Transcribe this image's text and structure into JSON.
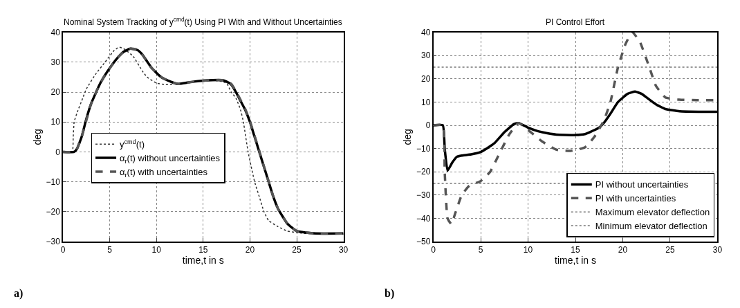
{
  "chart_data": [
    {
      "type": "line",
      "title": "Nominal System Tracking of y$^{cmd}$(t) Using PI With and Without Uncertainties",
      "xlabel": "time,t in s",
      "ylabel": "deg",
      "xlim": [
        0,
        30
      ],
      "ylim": [
        -30,
        40
      ],
      "xticks": [
        0,
        5,
        10,
        15,
        20,
        25,
        30
      ],
      "yticks": [
        -30,
        -20,
        -10,
        0,
        10,
        20,
        30,
        40
      ],
      "grid": true,
      "legend": "left",
      "annotations": [
        "a)"
      ],
      "series": [
        {
          "name": "y$^{cmd}$(t)",
          "color": "#333333",
          "line_style": "dotted",
          "x": [
            0,
            1,
            1.1,
            1.2,
            1.5,
            2,
            2.5,
            3.5,
            4.5,
            5.5,
            6,
            6.5,
            7.5,
            8.5,
            9,
            10,
            11,
            12,
            13,
            14,
            16,
            17,
            17.5,
            18,
            18.5,
            19,
            19.3,
            19.8,
            20.5,
            21,
            21.5,
            22,
            23,
            24,
            25,
            26,
            28,
            30
          ],
          "values": [
            0,
            0,
            5,
            10,
            13,
            17,
            21,
            26,
            30,
            34,
            35,
            34.5,
            32,
            27,
            25,
            23,
            22.5,
            22.7,
            23,
            23.5,
            24,
            23.5,
            23,
            20,
            18,
            14,
            10,
            0,
            -10,
            -15,
            -20,
            -23,
            -25,
            -26.5,
            -27,
            -27.3,
            -27.5,
            -27.5
          ]
        },
        {
          "name": "α$_{r}$(t) without uncertainties",
          "color": "#000000",
          "line_style": "solid",
          "x": [
            0,
            1.2,
            1.5,
            2,
            2.5,
            3,
            4,
            5,
            6,
            6.5,
            7.2,
            8,
            8.5,
            9.5,
            10.5,
            11.5,
            12.3,
            13,
            14,
            15,
            16,
            17,
            17.5,
            18,
            18.5,
            19,
            19.5,
            20,
            20.5,
            21,
            21.5,
            22,
            22.5,
            23,
            24,
            25,
            26,
            27,
            30
          ],
          "values": [
            0,
            0,
            1,
            5,
            11,
            16,
            23,
            28,
            32,
            33.5,
            34.5,
            34,
            32.5,
            28,
            25,
            23.5,
            22.7,
            23,
            23.5,
            23.8,
            24,
            24,
            23.5,
            22.5,
            20,
            17,
            14,
            10,
            5,
            0,
            -5,
            -10,
            -15,
            -19,
            -24,
            -26.5,
            -27,
            -27.3,
            -27.3
          ]
        },
        {
          "name": "α$_{r}$(t) with uncertainties",
          "color": "#555555",
          "line_style": "dashed",
          "x": [
            0,
            1.2,
            1.5,
            2,
            2.5,
            3,
            4,
            5,
            6,
            6.5,
            7.2,
            8,
            8.5,
            9.5,
            10.5,
            11.5,
            12.3,
            13,
            14,
            15,
            16,
            17,
            17.5,
            18,
            18.5,
            19,
            19.5,
            20,
            20.5,
            21,
            21.5,
            22,
            22.5,
            23,
            24,
            25,
            26,
            27,
            30
          ],
          "values": [
            0,
            0,
            1,
            5,
            10.5,
            16,
            23,
            28,
            32,
            33.5,
            34.5,
            34.2,
            32.5,
            28,
            25,
            23.5,
            22.7,
            23,
            23.5,
            23.8,
            24,
            24,
            23.7,
            22.7,
            20.3,
            17.3,
            14.3,
            10.3,
            5.3,
            0.3,
            -5,
            -10,
            -15,
            -19,
            -24,
            -26.5,
            -27,
            -27.3,
            -27.3
          ]
        }
      ]
    },
    {
      "type": "line",
      "title": "PI Control Effort",
      "xlabel": "time,t in s",
      "ylabel": "deg",
      "xlim": [
        0,
        30
      ],
      "ylim": [
        -50,
        40
      ],
      "xticks": [
        0,
        5,
        10,
        15,
        20,
        25,
        30
      ],
      "yticks": [
        -50,
        -40,
        -30,
        -20,
        -10,
        0,
        10,
        20,
        30,
        40
      ],
      "grid": true,
      "legend": "bottom right",
      "annotations": [
        "b)"
      ],
      "series": [
        {
          "name": "PI without uncertainties",
          "color": "#000000",
          "line_style": "solid",
          "x": [
            0,
            1,
            1.2,
            1.5,
            2,
            2.5,
            3,
            4,
            5,
            6,
            6.5,
            7.5,
            8.5,
            9,
            10,
            11,
            11.5,
            13,
            15,
            16,
            16.5,
            17.5,
            18,
            18.7,
            19.5,
            20.5,
            21.3,
            22,
            22.5,
            23.5,
            24.5,
            26,
            28,
            30
          ],
          "values": [
            0,
            0,
            -10,
            -19.5,
            -16,
            -13.5,
            -13,
            -12.5,
            -11.5,
            -9,
            -7.5,
            -3,
            0.5,
            1,
            -1,
            -2.5,
            -3,
            -4,
            -4.2,
            -3.8,
            -3,
            -1,
            1,
            5,
            10,
            13.5,
            14.5,
            13.5,
            12,
            9,
            7,
            6,
            5.8,
            5.8
          ]
        },
        {
          "name": "PI with uncertainties",
          "color": "#555555",
          "line_style": "dashed",
          "x": [
            0,
            1,
            1.2,
            1.5,
            1.9,
            2.3,
            3,
            3.8,
            5,
            6,
            7,
            8,
            9,
            10,
            11.5,
            13,
            14.5,
            16,
            17,
            18,
            18.7,
            19.5,
            20.3,
            21,
            21.8,
            22.8,
            23.5,
            24.5,
            26,
            28,
            30
          ],
          "values": [
            0,
            0,
            -20,
            -40,
            -42.5,
            -38,
            -30,
            -26,
            -24,
            -20,
            -12,
            -4,
            1,
            -2,
            -7,
            -10.5,
            -11,
            -9.5,
            -5,
            2,
            10,
            25,
            35,
            40,
            36,
            25,
            17,
            12,
            11,
            10.8,
            10.8
          ]
        },
        {
          "name": "Maximum elevator deflection",
          "color": "#777777",
          "line_style": "dotted",
          "x": [
            0,
            30
          ],
          "values": [
            25,
            25
          ]
        },
        {
          "name": "Minimum elevator deflection",
          "color": "#777777",
          "line_style": "dotted",
          "x": [
            0,
            30
          ],
          "values": [
            -25,
            -25
          ]
        }
      ]
    }
  ]
}
